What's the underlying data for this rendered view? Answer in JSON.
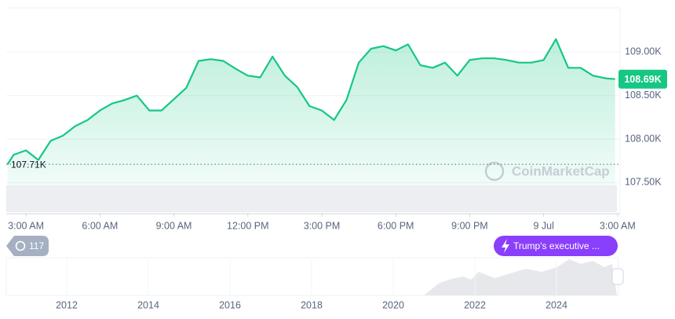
{
  "chart_data": {
    "type": "line",
    "color": "#16c784",
    "x": [
      2.25,
      2.5,
      3,
      3.5,
      4,
      4.5,
      5,
      5.5,
      6,
      6.5,
      7,
      7.5,
      8,
      8.5,
      9,
      9.5,
      10,
      10.5,
      11,
      11.5,
      12,
      12.5,
      13,
      13.5,
      14,
      14.5,
      15,
      15.5,
      16,
      16.5,
      17,
      17.5,
      18,
      18.5,
      19,
      19.5,
      20,
      20.5,
      21,
      21.5,
      22,
      22.5,
      23,
      23.5,
      24,
      24.5,
      25,
      25.5,
      26,
      26.5,
      26.9
    ],
    "values": [
      107710,
      107820,
      107870,
      107760,
      107980,
      108040,
      108150,
      108220,
      108330,
      108410,
      108450,
      108500,
      108330,
      108330,
      108460,
      108590,
      108900,
      108920,
      108900,
      108810,
      108730,
      108710,
      108950,
      108730,
      108600,
      108380,
      108330,
      108220,
      108450,
      108880,
      109040,
      109070,
      109020,
      109090,
      108850,
      108820,
      108880,
      108730,
      108910,
      108930,
      108930,
      108910,
      108880,
      108880,
      108910,
      109150,
      108820,
      108820,
      108730,
      108700,
      108690
    ],
    "xlim": [
      2.2,
      27.1
    ],
    "xticks": [
      {
        "value": 3,
        "label": "3:00 AM"
      },
      {
        "value": 6,
        "label": "6:00 AM"
      },
      {
        "value": 9,
        "label": "9:00 AM"
      },
      {
        "value": 12,
        "label": "12:00 PM"
      },
      {
        "value": 15,
        "label": "3:00 PM"
      },
      {
        "value": 18,
        "label": "6:00 PM"
      },
      {
        "value": 21,
        "label": "9:00 PM"
      },
      {
        "value": 24,
        "label": "9 Jul"
      },
      {
        "value": 27,
        "label": "3:00 AM"
      }
    ],
    "ylim": [
      107160,
      109510
    ],
    "yticks": [
      {
        "value": 107500,
        "label": "107.50K"
      },
      {
        "value": 108000,
        "label": "108.00K"
      },
      {
        "value": 108500,
        "label": "108.50K"
      },
      {
        "value": 109000,
        "label": "109.00K"
      }
    ],
    "grid": true,
    "low": {
      "value": 107710,
      "label": "107.71K"
    },
    "last": {
      "value": 108690,
      "label": "108.69K"
    },
    "watermark": "CoinMarketCap",
    "history_badge": "117",
    "event_badge": "Trump's executive ...",
    "navigator_years": [
      "2012",
      "2014",
      "2016",
      "2018",
      "2020",
      "2022",
      "2024"
    ]
  }
}
